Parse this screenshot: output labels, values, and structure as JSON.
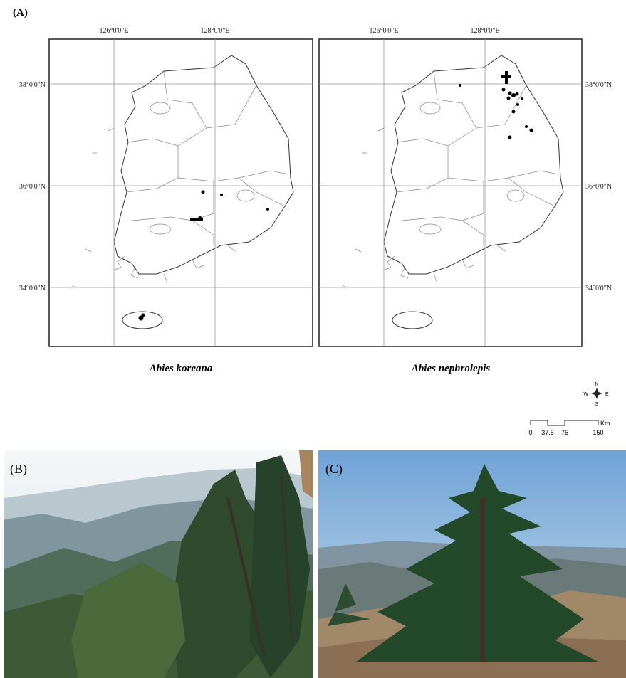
{
  "panel_a": {
    "label": "(A)",
    "maps": [
      {
        "species": "Abies koreana",
        "lon_labels": [
          "126°0'0\"E",
          "128°0'0\"E"
        ],
        "lat_labels": [
          "38°0'0\"N",
          "36°0'0\"N",
          "34°0'0\"N"
        ]
      },
      {
        "species": "Abies nephrolepis",
        "lon_labels": [
          "126°0'0\"E",
          "128°0'0\"E"
        ],
        "lat_labels": [
          "38°0'0\"N",
          "36°0'0\"N",
          "34°0'0\"N"
        ]
      }
    ]
  },
  "compass": {
    "n": "N",
    "e": "E",
    "s": "S",
    "w": "W"
  },
  "scale_bar": {
    "ticks": [
      "0",
      "37.5",
      "75",
      "150"
    ],
    "unit": "Km"
  },
  "panel_b": {
    "label": "(B)"
  },
  "panel_c": {
    "label": "(C)"
  }
}
